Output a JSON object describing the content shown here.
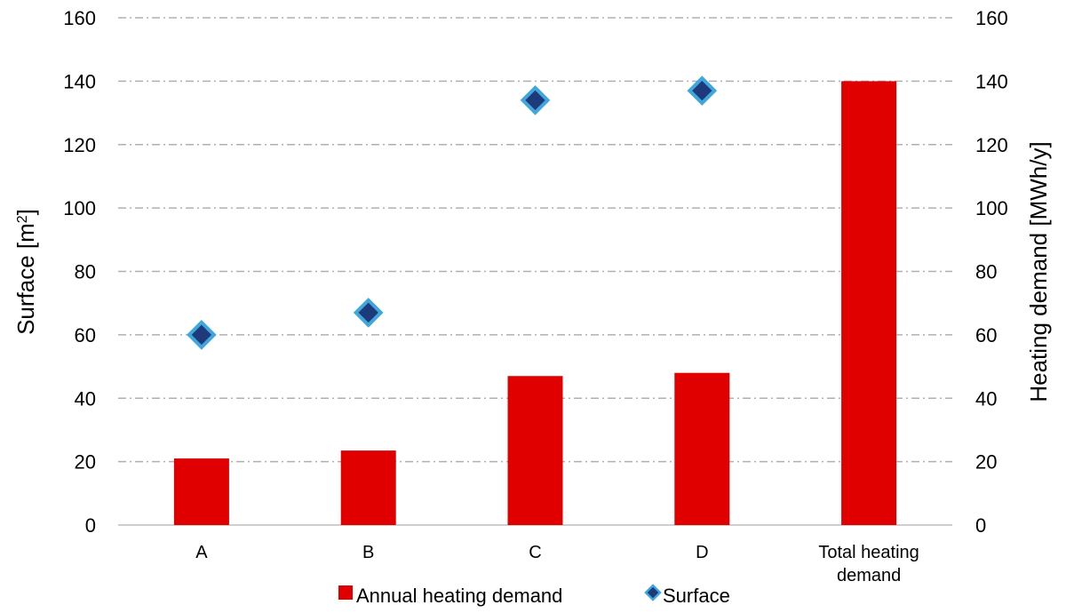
{
  "chart_data": {
    "type": "bar",
    "categories": [
      "A",
      "B",
      "C",
      "D",
      "Total heating demand"
    ],
    "category_label_lines": [
      [
        "A"
      ],
      [
        "B"
      ],
      [
        "C"
      ],
      [
        "D"
      ],
      [
        "Total heating",
        "demand"
      ]
    ],
    "series": [
      {
        "name": "Annual heating demand",
        "type": "bar",
        "axis": "right",
        "values": [
          21,
          23.5,
          47,
          48,
          140
        ],
        "color": "#e00000"
      },
      {
        "name": "Surface",
        "type": "scatter",
        "axis": "left",
        "values": [
          60,
          67,
          134,
          137,
          null
        ],
        "color": "#1f3a7a",
        "edge_color": "#3fa7dc"
      }
    ],
    "ylabel": "Surface [m²]",
    "ylabel_main": "Surface [m",
    "ylabel_sup": "2",
    "ylabel_end": "]",
    "y2label": "Heating demand [MWh/y]",
    "ylim": [
      0,
      160
    ],
    "y2lim": [
      0,
      160
    ],
    "yticks": [
      0,
      20,
      40,
      60,
      80,
      100,
      120,
      140,
      160
    ],
    "y2ticks": [
      0,
      20,
      40,
      60,
      80,
      100,
      120,
      140,
      160
    ],
    "grid": true,
    "grid_color": "#b0b0b0",
    "legend_position": "bottom"
  }
}
